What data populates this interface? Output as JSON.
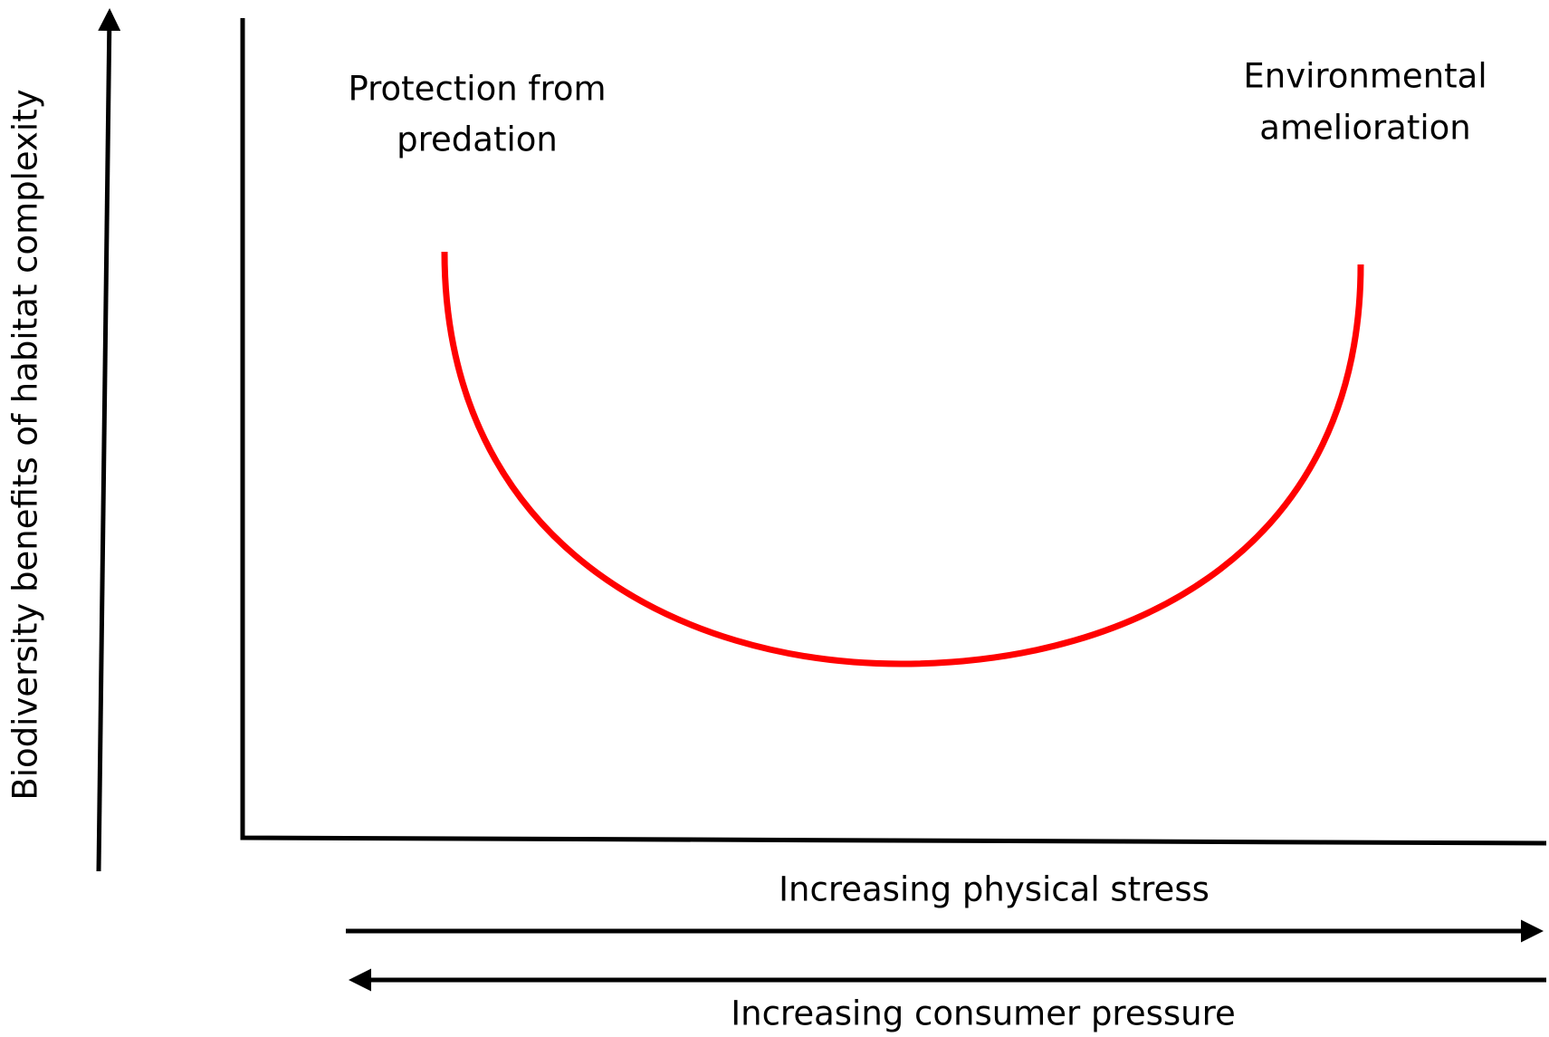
{
  "y_axis_label": "Biodiversity benefits of habitat complexity",
  "annotations": [
    {
      "lines": [
        "Protection from",
        "predation"
      ]
    },
    {
      "lines": [
        "Environmental",
        "amelioration"
      ]
    }
  ],
  "x_arrows": [
    {
      "label": "Increasing physical stress"
    },
    {
      "label": "Increasing consumer pressure"
    }
  ]
}
